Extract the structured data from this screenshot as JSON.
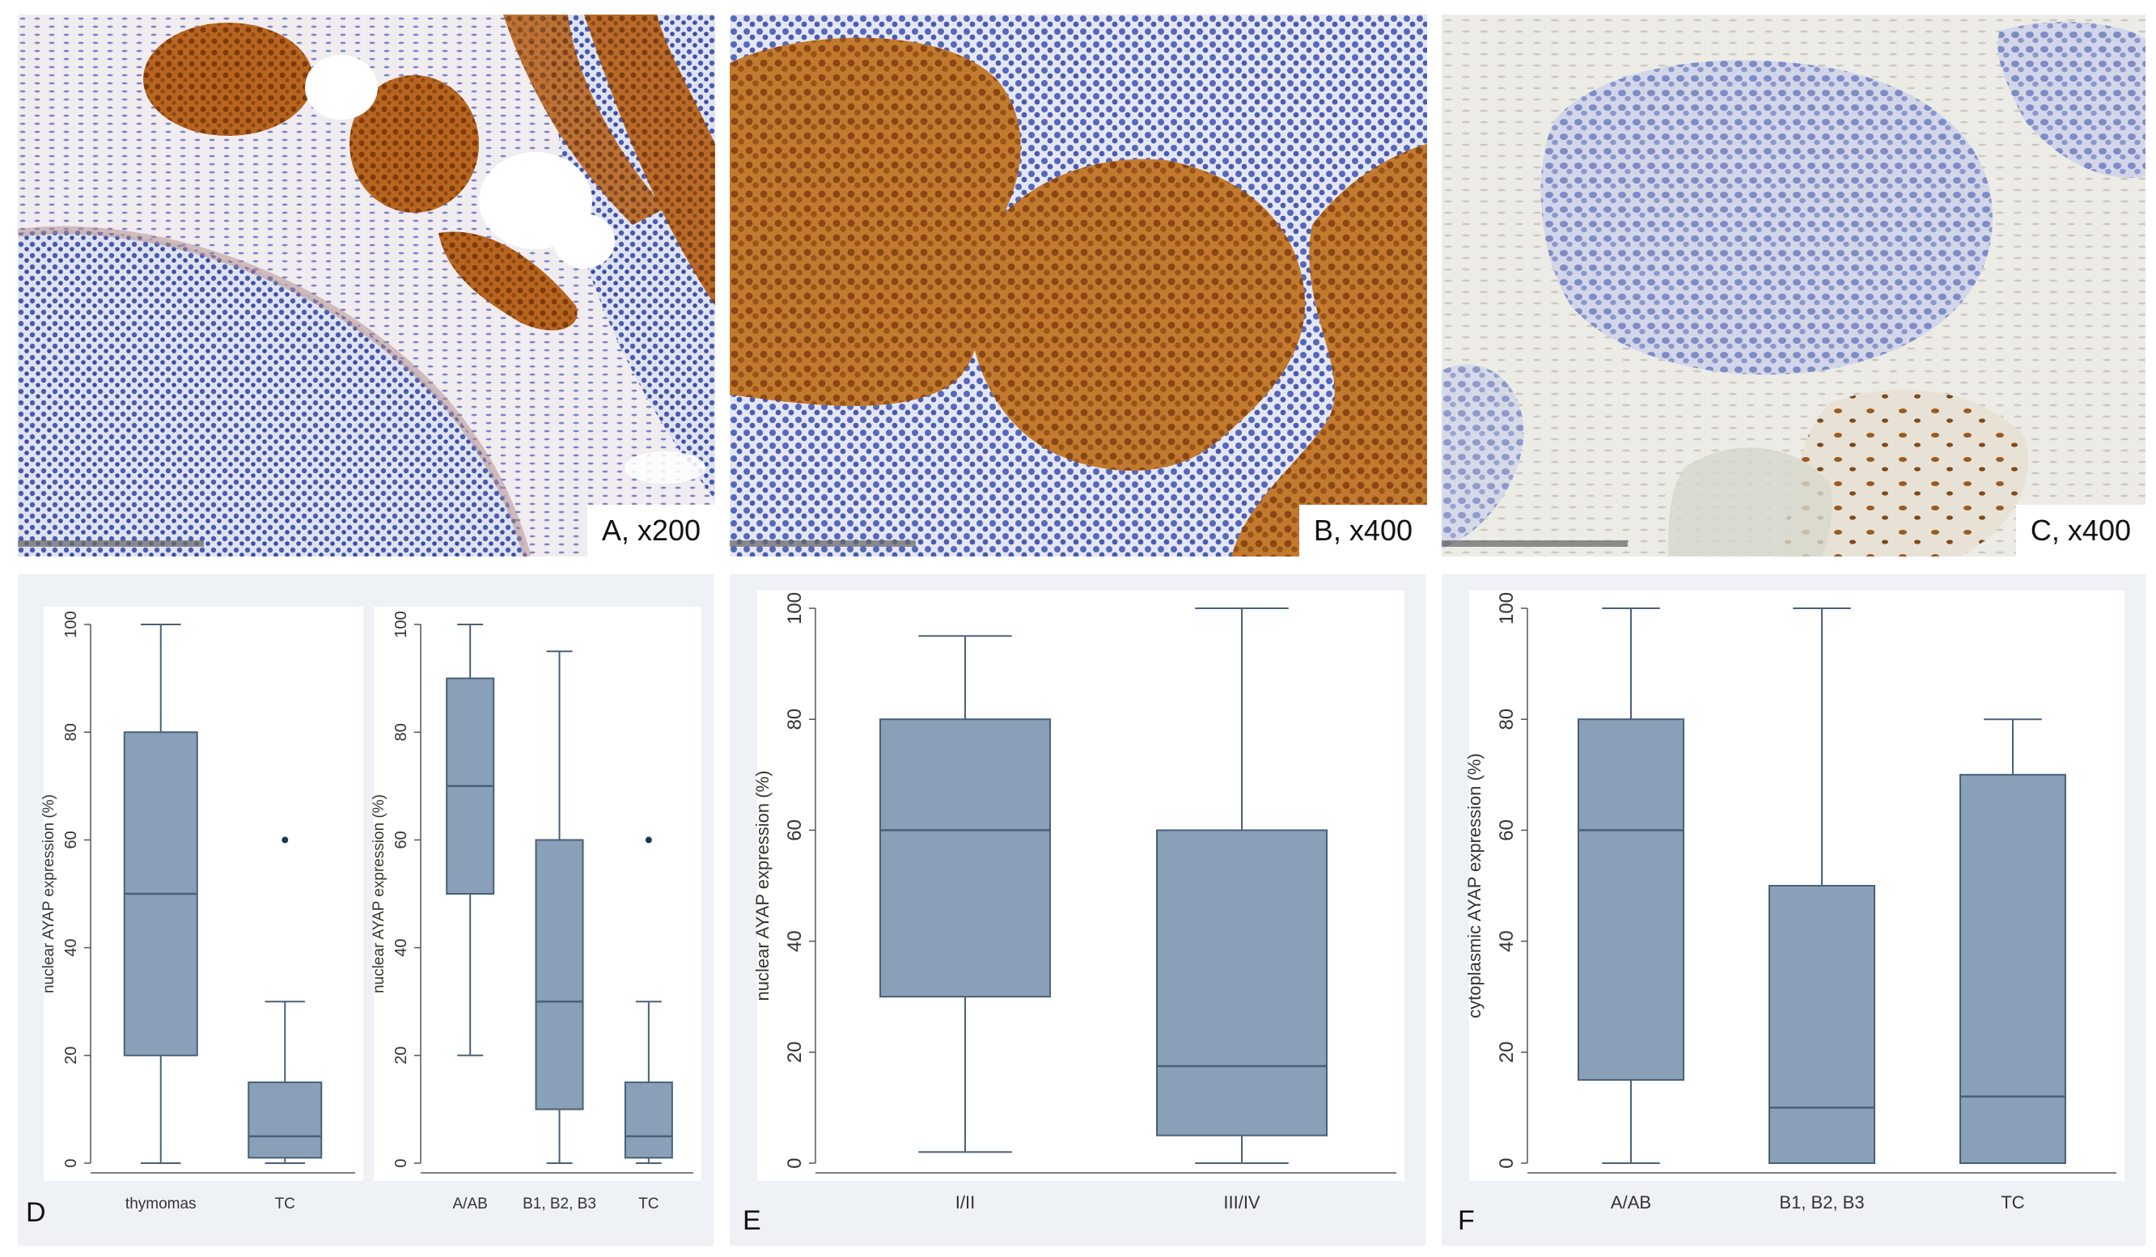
{
  "micrographs": [
    {
      "id": "A",
      "label": "A, x200"
    },
    {
      "id": "B",
      "label": "B, x400"
    },
    {
      "id": "C",
      "label": "C, x400"
    }
  ],
  "colors": {
    "box_fill": "#8aa0b8",
    "box_stroke": "#4a6078",
    "panel_bg": "#eef2f6",
    "plot_bg": "#ffffff",
    "outlier": "#1d3557"
  },
  "chart_data": [
    {
      "panel": "D",
      "type": "box",
      "subplot": "left",
      "ylabel": "nuclear AYAP expression (%)",
      "ylim": [
        0,
        100
      ],
      "yticks": [
        "0",
        "20",
        "40",
        "60",
        "80",
        "100"
      ],
      "categories": [
        "thymomas",
        "TC"
      ],
      "boxes": [
        {
          "min": 0,
          "q1": 20,
          "median": 50,
          "q3": 80,
          "max": 100,
          "outliers": []
        },
        {
          "min": 0,
          "q1": 1,
          "median": 5,
          "q3": 15,
          "max": 30,
          "outliers": [
            60
          ]
        }
      ]
    },
    {
      "panel": "D",
      "type": "box",
      "subplot": "right",
      "ylabel": "nuclear AYAP expression (%)",
      "ylim": [
        0,
        100
      ],
      "yticks": [
        "0",
        "20",
        "40",
        "60",
        "80",
        "100"
      ],
      "categories": [
        "A/AB",
        "B1, B2, B3",
        "TC"
      ],
      "boxes": [
        {
          "min": 20,
          "q1": 50,
          "median": 70,
          "q3": 90,
          "max": 100,
          "outliers": []
        },
        {
          "min": 0,
          "q1": 10,
          "median": 30,
          "q3": 60,
          "max": 95,
          "outliers": []
        },
        {
          "min": 0,
          "q1": 1,
          "median": 5,
          "q3": 15,
          "max": 30,
          "outliers": [
            60
          ]
        }
      ]
    },
    {
      "panel": "E",
      "type": "box",
      "ylabel": "nuclear AYAP expression (%)",
      "ylim": [
        0,
        100
      ],
      "yticks": [
        "0",
        "20",
        "40",
        "60",
        "80",
        "100"
      ],
      "categories": [
        "I/II",
        "III/IV"
      ],
      "boxes": [
        {
          "min": 2,
          "q1": 30,
          "median": 60,
          "q3": 80,
          "max": 95,
          "outliers": []
        },
        {
          "min": 0,
          "q1": 5,
          "median": 17.5,
          "q3": 60,
          "max": 100,
          "outliers": []
        }
      ]
    },
    {
      "panel": "F",
      "type": "box",
      "ylabel": "cytoplasmic AYAP expression (%)",
      "ylim": [
        0,
        100
      ],
      "yticks": [
        "0",
        "20",
        "40",
        "60",
        "80",
        "100"
      ],
      "categories": [
        "A/AB",
        "B1, B2, B3",
        "TC"
      ],
      "boxes": [
        {
          "min": 0,
          "q1": 15,
          "median": 60,
          "q3": 80,
          "max": 100,
          "outliers": []
        },
        {
          "min": 0,
          "q1": 0,
          "median": 10,
          "q3": 50,
          "max": 100,
          "outliers": []
        },
        {
          "min": 0,
          "q1": 0,
          "median": 12,
          "q3": 70,
          "max": 80,
          "outliers": []
        }
      ]
    }
  ],
  "panel_letters": {
    "D": "D",
    "E": "E",
    "F": "F"
  }
}
